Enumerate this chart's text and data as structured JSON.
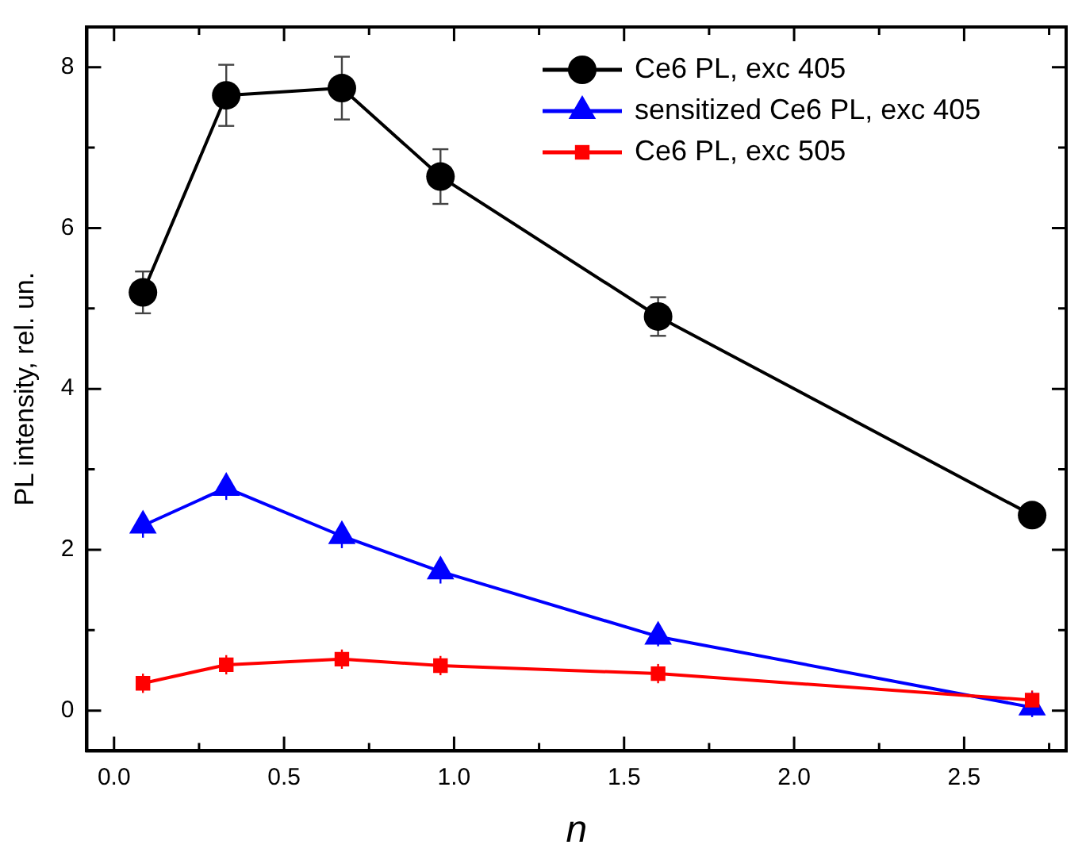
{
  "chart_data": {
    "type": "line",
    "xlabel": "n",
    "ylabel": "PL intensity, rel. un.",
    "xlim": [
      -0.08,
      2.8
    ],
    "ylim": [
      -0.5,
      8.5
    ],
    "xticks": [
      {
        "value": 0,
        "label": "0.0"
      },
      {
        "value": 0.25,
        "label": null
      },
      {
        "value": 0.5,
        "label": "0.5"
      },
      {
        "value": 0.75,
        "label": null
      },
      {
        "value": 1,
        "label": "1.0"
      },
      {
        "value": 1.25,
        "label": null
      },
      {
        "value": 1.5,
        "label": "1.5"
      },
      {
        "value": 1.75,
        "label": null
      },
      {
        "value": 2,
        "label": "2.0"
      },
      {
        "value": 2.25,
        "label": null
      },
      {
        "value": 2.5,
        "label": "2.5"
      },
      {
        "value": 2.75,
        "label": null
      }
    ],
    "yticks": [
      0,
      {
        "value": 1,
        "label": null
      },
      2,
      {
        "value": 3,
        "label": null
      },
      4,
      {
        "value": 5,
        "label": null
      },
      6,
      {
        "value": 7,
        "label": null
      },
      8
    ],
    "x": [
      0.085,
      0.33,
      0.67,
      0.96,
      1.6,
      2.7
    ],
    "series": [
      {
        "name": "Ce6 PL, exc 405",
        "color": "#000000",
        "marker": "circle",
        "values": [
          5.2,
          7.65,
          7.74,
          6.64,
          4.9,
          2.43
        ],
        "errors": [
          0.26,
          0.38,
          0.39,
          0.34,
          0.24,
          null
        ]
      },
      {
        "name": "sensitized Ce6 PL, exc 405",
        "color": "#0000ff",
        "marker": "triangle",
        "values": [
          2.3,
          2.77,
          2.17,
          1.73,
          0.92,
          0.04
        ],
        "errors": [
          0.15,
          0.15,
          0.15,
          0.15,
          0.12,
          0.12
        ]
      },
      {
        "name": "Ce6 PL, exc 505",
        "color": "#ff0000",
        "marker": "square",
        "values": [
          0.34,
          0.57,
          0.64,
          0.56,
          0.46,
          0.13
        ],
        "errors": [
          0.12,
          0.12,
          0.12,
          0.12,
          0.12,
          0.12
        ]
      }
    ],
    "legend": "top right",
    "grid": false
  }
}
